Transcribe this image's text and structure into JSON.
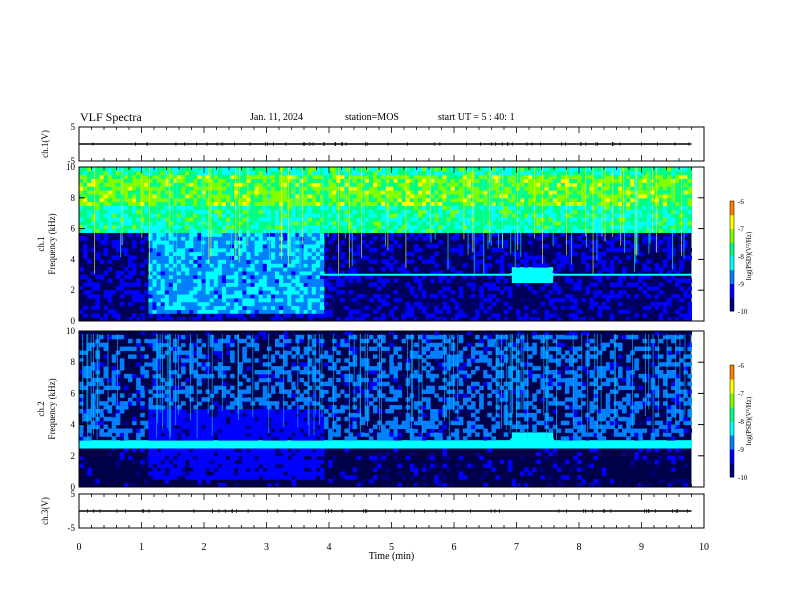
{
  "header": {
    "title": "VLF Spectra",
    "date": "Jan. 11, 2024",
    "station": "station=MOS",
    "start": "start UT =  5 : 40: 1"
  },
  "chart_data": {
    "type": "heatmap",
    "xlabel": "Time (min)",
    "xlim": [
      0,
      10
    ],
    "x_ticks": [
      "0",
      "1",
      "2",
      "3",
      "4",
      "5",
      "6",
      "7",
      "8",
      "9",
      "10"
    ],
    "data_end_min": 9.8,
    "panels": [
      {
        "id": "ch1-voltage",
        "type": "line",
        "ylabel": "ch.1(V)",
        "ylim": [
          -5,
          5
        ],
        "y_ticks": [
          "5",
          "-5"
        ],
        "baseline_v": 0
      },
      {
        "id": "ch1-spectrogram",
        "type": "heatmap",
        "ylabel": "ch.1 Frequency (kHz)",
        "ylim": [
          0,
          10
        ],
        "y_ticks": [
          "0",
          "2",
          "4",
          "6",
          "8",
          "10"
        ],
        "features": [
          {
            "kind": "emission band",
            "t": [
              0,
              9.8
            ],
            "f": [
              5.8,
              10
            ],
            "log_psd": -7.6
          },
          {
            "kind": "noise burst",
            "t": [
              1.1,
              3.9
            ],
            "f": [
              0.4,
              5.8
            ],
            "log_psd": -8.3
          },
          {
            "kind": "line",
            "t": [
              3.9,
              9.8
            ],
            "f": [
              3.0,
              3.0
            ],
            "log_psd": -8.5
          },
          {
            "kind": "line",
            "t": [
              6.9,
              7.6
            ],
            "f": [
              2.8,
              3.3
            ],
            "log_psd": -8.3
          }
        ],
        "colorbar": {
          "label": "log(PSD)(V²/Hz)",
          "ticks": [
            "-6",
            "-7",
            "-8",
            "-9",
            "-10"
          ],
          "range": [
            -10,
            -6
          ]
        }
      },
      {
        "id": "ch2-spectrogram",
        "type": "heatmap",
        "ylabel": "ch.2 Frequency (kHz)",
        "ylim": [
          0,
          10
        ],
        "y_ticks": [
          "0",
          "2",
          "4",
          "6",
          "8",
          "10"
        ],
        "features": [
          {
            "kind": "sferic bursts",
            "t": [
              0,
              9.8
            ],
            "f": [
              3.0,
              9.8
            ],
            "log_psd": -8.8
          },
          {
            "kind": "noise region",
            "t": [
              1.1,
              3.9
            ],
            "f": [
              0.4,
              4.5
            ],
            "log_psd": -9.0
          },
          {
            "kind": "line",
            "t": [
              0,
              9.8
            ],
            "f": [
              2.8,
              3.0
            ],
            "log_psd": -8.3
          },
          {
            "kind": "line",
            "t": [
              6.9,
              7.6
            ],
            "f": [
              2.8,
              3.3
            ],
            "log_psd": -8.2
          }
        ],
        "colorbar": {
          "label": "log(PSD)(V²/Hz)",
          "ticks": [
            "-6",
            "-7",
            "-8",
            "-9",
            "-10"
          ],
          "range": [
            -10,
            -6
          ]
        }
      },
      {
        "id": "ch3-voltage",
        "type": "line",
        "ylabel": "ch.3(V)",
        "ylim": [
          -5,
          5
        ],
        "y_ticks": [
          "5",
          "-5"
        ],
        "baseline_v": 0
      }
    ],
    "colormap": [
      "#00007f",
      "#0000ff",
      "#0080ff",
      "#00ffff",
      "#00ff80",
      "#80ff00",
      "#ffff00",
      "#ff8000",
      "#ff0000",
      "#ffffff"
    ]
  }
}
